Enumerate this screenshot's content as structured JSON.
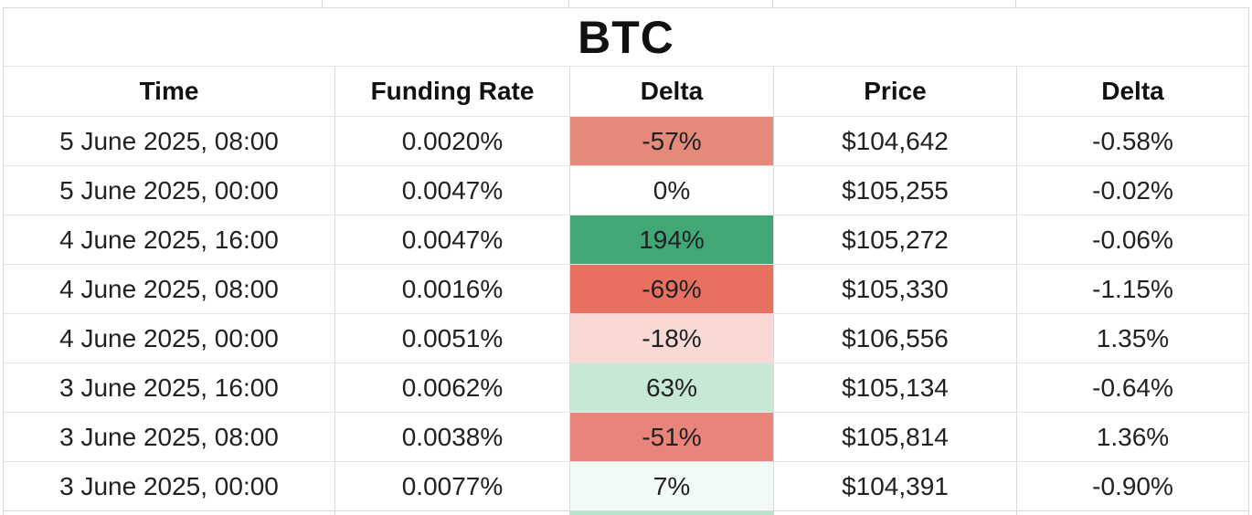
{
  "title": "BTC",
  "columns": [
    "Time",
    "Funding Rate",
    "Delta",
    "Price",
    "Delta"
  ],
  "rows": [
    {
      "time": "5 June 2025, 08:00",
      "funding_rate": "0.0020%",
      "delta": "-57%",
      "delta_bg": "#e5897b",
      "price": "$104,642",
      "price_delta": "-0.58%"
    },
    {
      "time": "5 June 2025, 00:00",
      "funding_rate": "0.0047%",
      "delta": "0%",
      "delta_bg": "#ffffff",
      "price": "$105,255",
      "price_delta": "-0.02%"
    },
    {
      "time": "4 June 2025, 16:00",
      "funding_rate": "0.0047%",
      "delta": "194%",
      "delta_bg": "#41a774",
      "price": "$105,272",
      "price_delta": "-0.06%"
    },
    {
      "time": "4 June 2025, 08:00",
      "funding_rate": "0.0016%",
      "delta": "-69%",
      "delta_bg": "#e77061",
      "price": "$105,330",
      "price_delta": "-1.15%"
    },
    {
      "time": "4 June 2025, 00:00",
      "funding_rate": "0.0051%",
      "delta": "-18%",
      "delta_bg": "#f8d9d4",
      "price": "$106,556",
      "price_delta": "1.35%"
    },
    {
      "time": "3 June 2025, 16:00",
      "funding_rate": "0.0062%",
      "delta": "63%",
      "delta_bg": "#c7e8d4",
      "price": "$105,134",
      "price_delta": "-0.64%"
    },
    {
      "time": "3 June 2025, 08:00",
      "funding_rate": "0.0038%",
      "delta": "-51%",
      "delta_bg": "#e8847a",
      "price": "$105,814",
      "price_delta": "1.36%"
    },
    {
      "time": "3 June 2025, 00:00",
      "funding_rate": "0.0077%",
      "delta": "7%",
      "delta_bg": "#f2faf5",
      "price": "$104,391",
      "price_delta": "-0.90%"
    }
  ],
  "partial_next_row": {
    "delta_bg": "#b9e2cc"
  },
  "colors": {
    "gridline_vertical": "#d9d9d9",
    "gridline_horizontal": "#e0e2e4",
    "positive_strong": "#41a774",
    "negative_strong": "#e77061",
    "text": "#202124"
  },
  "chart_data": {
    "type": "table",
    "title": "BTC",
    "categories": [
      "5 June 2025, 08:00",
      "5 June 2025, 00:00",
      "4 June 2025, 16:00",
      "4 June 2025, 08:00",
      "4 June 2025, 00:00",
      "3 June 2025, 16:00",
      "3 June 2025, 08:00",
      "3 June 2025, 00:00"
    ],
    "series": [
      {
        "name": "Funding Rate (%)",
        "values": [
          0.002,
          0.0047,
          0.0047,
          0.0016,
          0.0051,
          0.0062,
          0.0038,
          0.0077
        ]
      },
      {
        "name": "Funding Rate Delta (%)",
        "values": [
          -57,
          0,
          194,
          -69,
          -18,
          63,
          -51,
          7
        ]
      },
      {
        "name": "Price (USD)",
        "values": [
          104642,
          105255,
          105272,
          105330,
          106556,
          105134,
          105814,
          104391
        ]
      },
      {
        "name": "Price Delta (%)",
        "values": [
          -0.58,
          -0.02,
          -0.06,
          -1.15,
          1.35,
          -0.64,
          1.36,
          -0.9
        ]
      }
    ]
  }
}
